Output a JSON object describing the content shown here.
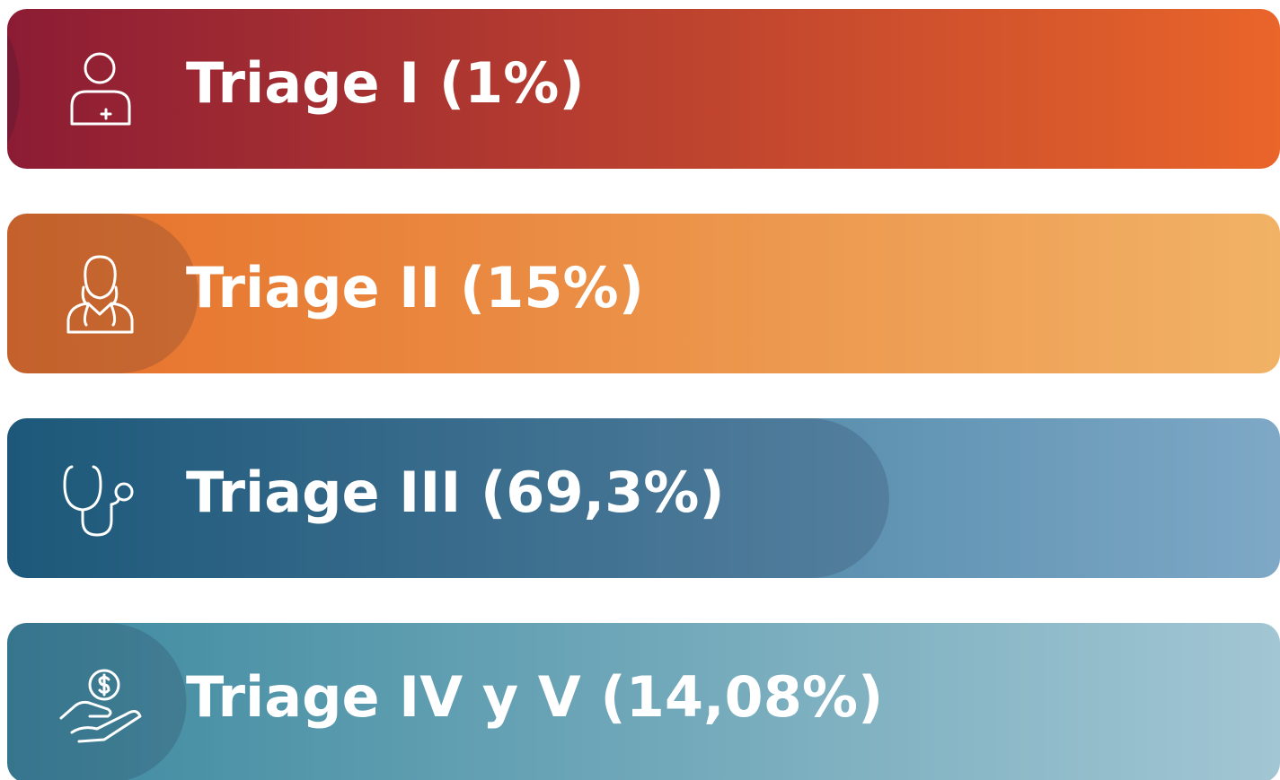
{
  "chart_data": {
    "type": "progress",
    "categories": [
      "Triage I",
      "Triage II",
      "Triage III",
      "Triage IV y V"
    ],
    "values": [
      1,
      15,
      69.3,
      14.08
    ],
    "value_labels": [
      "(1%)",
      "(15%)",
      "(69,3%)",
      "(14,08%)"
    ],
    "xlim": [
      0,
      100
    ],
    "colors": [
      [
        "#8c1c34",
        "#e9652a"
      ],
      [
        "#e6702a",
        "#f1b266"
      ],
      [
        "#1f6688",
        "#7ea8c6"
      ],
      [
        "#3d899f",
        "#a2c6d3"
      ]
    ]
  }
}
